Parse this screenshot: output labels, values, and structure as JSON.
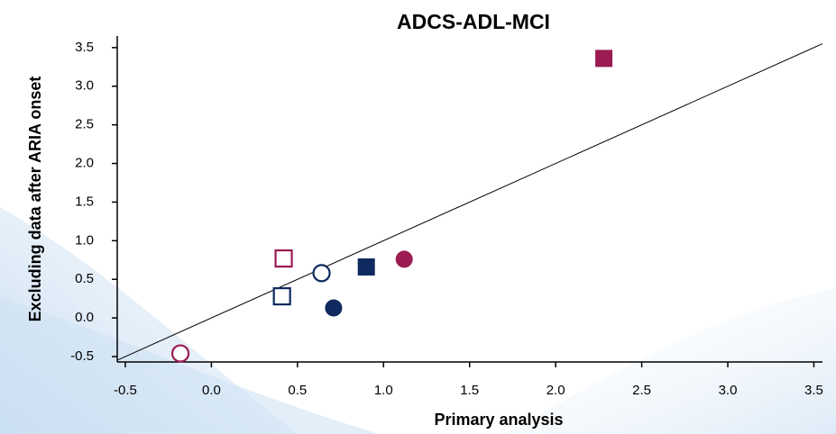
{
  "chart_data": {
    "type": "scatter",
    "title": "ADCS-ADL-MCI",
    "x_label": "Primary analysis",
    "y_label": "Excluding data after ARIA onset",
    "xlim": [
      -0.547,
      3.55
    ],
    "ylim": [
      -0.57,
      3.65
    ],
    "xticks": [
      -0.5,
      {
        "value": 0,
        "label": "0.0"
      },
      0.5,
      {
        "value": 1,
        "label": "1.0"
      },
      1.5,
      {
        "value": 2,
        "label": "2.0"
      },
      2.5,
      {
        "value": 3,
        "label": "3.0"
      },
      3.5
    ],
    "yticks": [
      -0.5,
      {
        "value": 0,
        "label": "0.0"
      },
      0.5,
      {
        "value": 1,
        "label": "1.0"
      },
      1.5,
      {
        "value": 2,
        "label": "2.0"
      },
      2.5,
      {
        "value": 3,
        "label": "3.0"
      },
      3.5
    ],
    "identity_line": true,
    "points": [
      {
        "x": 2.28,
        "y": 3.36,
        "color": "#9b1c52",
        "marker": "square",
        "filled": true
      },
      {
        "x": 1.12,
        "y": 0.76,
        "color": "#9b1c52",
        "marker": "circle",
        "filled": true
      },
      {
        "x": 0.9,
        "y": 0.66,
        "color": "#0e2a5e",
        "marker": "square",
        "filled": true
      },
      {
        "x": 0.71,
        "y": 0.13,
        "color": "#0e2a5e",
        "marker": "circle",
        "filled": true
      },
      {
        "x": 0.64,
        "y": 0.58,
        "color": "#0e2a5e",
        "marker": "circle",
        "filled": false
      },
      {
        "x": 0.41,
        "y": 0.28,
        "color": "#0e2a5e",
        "marker": "square",
        "filled": false
      },
      {
        "x": 0.42,
        "y": 0.77,
        "color": "#9b1c52",
        "marker": "square",
        "filled": false
      },
      {
        "x": -0.18,
        "y": -0.46,
        "color": "#9b1c52",
        "marker": "circle",
        "filled": false
      }
    ]
  }
}
